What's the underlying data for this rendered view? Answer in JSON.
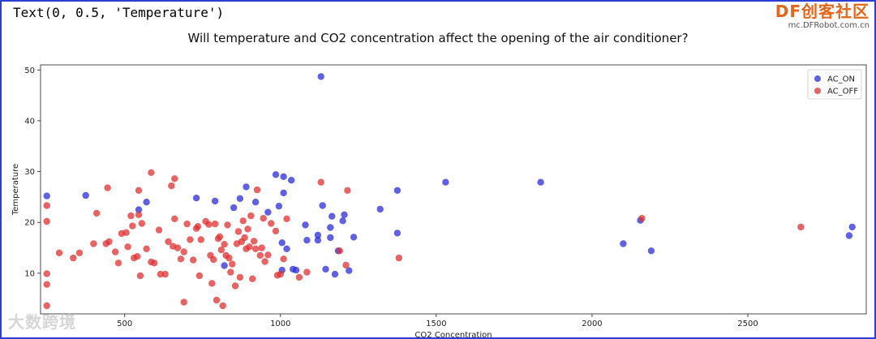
{
  "notebook": {
    "output_text": "Text(0, 0.5, 'Temperature')"
  },
  "branding": {
    "logo_text": "DF创客社区",
    "url": "mc.DFRobot.com.cn",
    "watermark": "大数跨境"
  },
  "colors": {
    "ac_on": "#2b2bd8",
    "ac_off": "#e03030",
    "frame": "#2b3fd6"
  },
  "chart_data": {
    "type": "scatter",
    "title": "Will temperature and CO2 concentration affect the opening of the air conditioner?",
    "xlabel": "CO2 Concentration",
    "ylabel": "Temperature",
    "xlim": [
      230,
      2880
    ],
    "ylim": [
      2,
      51
    ],
    "xticks": [
      500,
      1000,
      1500,
      2000,
      2500
    ],
    "yticks": [
      10,
      20,
      30,
      40,
      50
    ],
    "legend_position": "top-right",
    "series": [
      {
        "name": "AC_ON",
        "color": "#2b2bd8",
        "points": [
          [
            250,
            25.2
          ],
          [
            375,
            25.3
          ],
          [
            545,
            22.5
          ],
          [
            570,
            24.0
          ],
          [
            730,
            24.8
          ],
          [
            790,
            24.2
          ],
          [
            820,
            11.5
          ],
          [
            850,
            22.9
          ],
          [
            870,
            24.7
          ],
          [
            890,
            27.0
          ],
          [
            920,
            24.0
          ],
          [
            960,
            22.0
          ],
          [
            985,
            29.4
          ],
          [
            995,
            23.2
          ],
          [
            1010,
            29.0
          ],
          [
            1020,
            14.8
          ],
          [
            1010,
            25.8
          ],
          [
            1005,
            16.0
          ],
          [
            1005,
            10.6
          ],
          [
            1035,
            28.3
          ],
          [
            1040,
            10.8
          ],
          [
            1050,
            10.6
          ],
          [
            1080,
            19.5
          ],
          [
            1085,
            16.5
          ],
          [
            1120,
            17.5
          ],
          [
            1120,
            16.5
          ],
          [
            1130,
            48.7
          ],
          [
            1135,
            23.3
          ],
          [
            1145,
            10.8
          ],
          [
            1160,
            19.0
          ],
          [
            1165,
            21.2
          ],
          [
            1160,
            17.0
          ],
          [
            1175,
            9.8
          ],
          [
            1185,
            14.4
          ],
          [
            1200,
            20.3
          ],
          [
            1205,
            21.5
          ],
          [
            1220,
            10.5
          ],
          [
            1235,
            17.1
          ],
          [
            1320,
            22.6
          ],
          [
            1375,
            17.9
          ],
          [
            1375,
            26.3
          ],
          [
            1530,
            27.9
          ],
          [
            1835,
            27.9
          ],
          [
            2100,
            15.8
          ],
          [
            2155,
            20.4
          ],
          [
            2190,
            14.4
          ],
          [
            2825,
            17.4
          ],
          [
            2835,
            19.1
          ]
        ]
      },
      {
        "name": "AC_OFF",
        "color": "#e03030",
        "points": [
          [
            250,
            23.3
          ],
          [
            250,
            20.2
          ],
          [
            250,
            9.9
          ],
          [
            250,
            7.8
          ],
          [
            250,
            3.6
          ],
          [
            290,
            14.0
          ],
          [
            335,
            13.0
          ],
          [
            355,
            14.0
          ],
          [
            400,
            15.8
          ],
          [
            410,
            21.8
          ],
          [
            440,
            15.8
          ],
          [
            445,
            26.8
          ],
          [
            450,
            16.2
          ],
          [
            470,
            14.2
          ],
          [
            480,
            12.0
          ],
          [
            490,
            17.8
          ],
          [
            505,
            18.0
          ],
          [
            510,
            15.2
          ],
          [
            520,
            21.3
          ],
          [
            525,
            19.3
          ],
          [
            530,
            13.0
          ],
          [
            545,
            21.5
          ],
          [
            545,
            26.3
          ],
          [
            540,
            13.3
          ],
          [
            550,
            9.5
          ],
          [
            555,
            19.8
          ],
          [
            570,
            14.8
          ],
          [
            585,
            29.8
          ],
          [
            585,
            12.2
          ],
          [
            595,
            12.0
          ],
          [
            610,
            18.5
          ],
          [
            615,
            9.8
          ],
          [
            630,
            9.8
          ],
          [
            640,
            16.2
          ],
          [
            650,
            27.2
          ],
          [
            660,
            20.7
          ],
          [
            655,
            15.3
          ],
          [
            660,
            28.6
          ],
          [
            670,
            15.0
          ],
          [
            680,
            12.8
          ],
          [
            690,
            4.3
          ],
          [
            690,
            14.2
          ],
          [
            700,
            19.7
          ],
          [
            710,
            16.6
          ],
          [
            720,
            12.6
          ],
          [
            730,
            18.8
          ],
          [
            735,
            19.2
          ],
          [
            740,
            9.5
          ],
          [
            745,
            16.6
          ],
          [
            760,
            20.2
          ],
          [
            770,
            19.6
          ],
          [
            775,
            13.5
          ],
          [
            780,
            8.0
          ],
          [
            785,
            12.7
          ],
          [
            790,
            19.7
          ],
          [
            795,
            4.7
          ],
          [
            800,
            16.8
          ],
          [
            805,
            17.2
          ],
          [
            810,
            14.6
          ],
          [
            815,
            3.6
          ],
          [
            820,
            15.7
          ],
          [
            825,
            13.5
          ],
          [
            830,
            19.5
          ],
          [
            835,
            13.0
          ],
          [
            840,
            10.2
          ],
          [
            845,
            11.8
          ],
          [
            855,
            7.5
          ],
          [
            860,
            15.8
          ],
          [
            865,
            18.2
          ],
          [
            870,
            9.2
          ],
          [
            875,
            16.2
          ],
          [
            880,
            20.3
          ],
          [
            885,
            17.0
          ],
          [
            890,
            14.8
          ],
          [
            895,
            18.7
          ],
          [
            900,
            15.2
          ],
          [
            905,
            21.3
          ],
          [
            910,
            8.9
          ],
          [
            915,
            16.3
          ],
          [
            920,
            14.8
          ],
          [
            925,
            26.4
          ],
          [
            935,
            13.5
          ],
          [
            940,
            15.0
          ],
          [
            945,
            20.8
          ],
          [
            950,
            12.3
          ],
          [
            960,
            13.6
          ],
          [
            970,
            19.8
          ],
          [
            985,
            18.3
          ],
          [
            990,
            9.6
          ],
          [
            1000,
            9.8
          ],
          [
            1010,
            12.8
          ],
          [
            1020,
            20.7
          ],
          [
            1060,
            9.2
          ],
          [
            1085,
            10.2
          ],
          [
            1130,
            27.9
          ],
          [
            1190,
            14.4
          ],
          [
            1210,
            11.6
          ],
          [
            1215,
            26.3
          ],
          [
            1380,
            13.0
          ],
          [
            2160,
            20.8
          ],
          [
            2670,
            19.1
          ]
        ]
      }
    ]
  }
}
